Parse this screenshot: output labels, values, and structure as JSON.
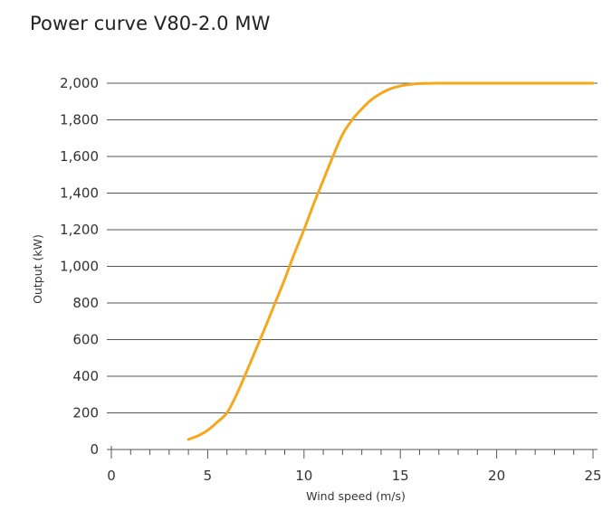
{
  "chart_data": {
    "type": "line",
    "title": "Power curve V80-2.0 MW",
    "xlabel": "Wind speed (m/s)",
    "ylabel": "Output (kW)",
    "xlim": [
      0,
      25
    ],
    "ylim": [
      0,
      2000
    ],
    "x_ticks": [
      0,
      5,
      10,
      15,
      20,
      25
    ],
    "x_tick_labels": [
      "0",
      "5",
      "10",
      "15",
      "20",
      "25"
    ],
    "x_minor_step": 1,
    "y_ticks": [
      0,
      200,
      400,
      600,
      800,
      1000,
      1200,
      1400,
      1600,
      1800,
      2000
    ],
    "y_tick_labels": [
      "0",
      "200",
      "400",
      "600",
      "800",
      "1,000",
      "1,200",
      "1,400",
      "1,600",
      "1,800",
      "2,000"
    ],
    "grid": "horizontal",
    "colors": {
      "line": "#f5a81e",
      "grid": "#555555",
      "text": "#333333"
    },
    "series": [
      {
        "x": [
          4,
          4.5,
          5,
          5.5,
          6,
          6.5,
          7,
          7.5,
          8,
          8.5,
          9,
          9.5,
          10,
          10.5,
          11,
          11.5,
          12,
          12.5,
          13,
          13.5,
          14,
          14.5,
          15,
          15.5,
          16,
          17,
          18,
          19,
          20,
          21,
          22,
          23,
          24,
          25
        ],
        "values": [
          55,
          75,
          105,
          150,
          200,
          300,
          420,
          545,
          670,
          800,
          930,
          1070,
          1200,
          1340,
          1470,
          1600,
          1720,
          1800,
          1860,
          1910,
          1945,
          1970,
          1985,
          1993,
          1998,
          2000,
          2000,
          2000,
          2000,
          2000,
          2000,
          2000,
          2000,
          2000
        ]
      }
    ]
  }
}
